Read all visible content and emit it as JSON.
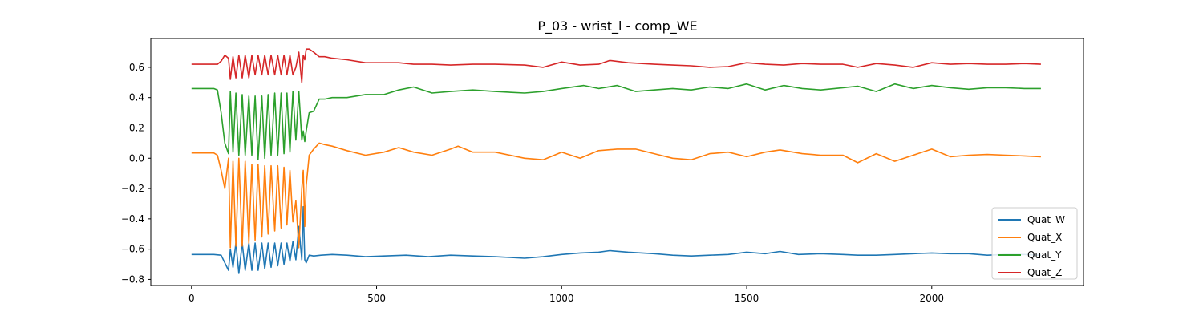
{
  "chart_data": {
    "type": "line",
    "title": "P_03 - wrist_l - comp_WE",
    "xlabel": "",
    "ylabel": "",
    "xlim": [
      -110,
      2410
    ],
    "ylim": [
      -0.84,
      0.79
    ],
    "x_ticks": [
      0,
      500,
      1000,
      1500,
      2000
    ],
    "y_ticks": [
      -0.8,
      -0.6,
      -0.4,
      -0.2,
      0.0,
      0.2,
      0.4,
      0.6
    ],
    "x_tick_labels": [
      "0",
      "500",
      "1000",
      "1500",
      "2000"
    ],
    "y_tick_labels": [
      "−0.8",
      "−0.6",
      "−0.4",
      "−0.2",
      "0.0",
      "0.2",
      "0.4",
      "0.6"
    ],
    "grid": false,
    "legend_position": "lower-right",
    "series": [
      {
        "name": "Quat_W",
        "color": "#1f77b4",
        "x": [
          0,
          60,
          80,
          90,
          100,
          105,
          112,
          120,
          128,
          137,
          145,
          155,
          163,
          172,
          180,
          190,
          198,
          207,
          215,
          225,
          233,
          242,
          250,
          258,
          266,
          274,
          282,
          290,
          298,
          302,
          306,
          310,
          318,
          330,
          350,
          380,
          420,
          470,
          520,
          580,
          640,
          700,
          760,
          820,
          860,
          900,
          950,
          1000,
          1050,
          1100,
          1130,
          1180,
          1250,
          1300,
          1350,
          1400,
          1450,
          1500,
          1550,
          1590,
          1640,
          1700,
          1760,
          1800,
          1850,
          1900,
          1950,
          2000,
          2050,
          2100,
          2150,
          2200,
          2250,
          2295
        ],
        "values": [
          -0.635,
          -0.635,
          -0.64,
          -0.69,
          -0.74,
          -0.6,
          -0.72,
          -0.56,
          -0.76,
          -0.56,
          -0.74,
          -0.56,
          -0.74,
          -0.56,
          -0.74,
          -0.56,
          -0.73,
          -0.56,
          -0.72,
          -0.56,
          -0.71,
          -0.56,
          -0.7,
          -0.56,
          -0.68,
          -0.55,
          -0.67,
          -0.45,
          -0.67,
          -0.32,
          -0.67,
          -0.69,
          -0.64,
          -0.645,
          -0.64,
          -0.635,
          -0.64,
          -0.65,
          -0.645,
          -0.64,
          -0.65,
          -0.64,
          -0.645,
          -0.65,
          -0.655,
          -0.66,
          -0.65,
          -0.635,
          -0.625,
          -0.62,
          -0.61,
          -0.62,
          -0.63,
          -0.64,
          -0.645,
          -0.64,
          -0.635,
          -0.62,
          -0.63,
          -0.615,
          -0.635,
          -0.63,
          -0.635,
          -0.64,
          -0.64,
          -0.635,
          -0.63,
          -0.625,
          -0.63,
          -0.63,
          -0.64,
          -0.635,
          -0.635,
          -0.64
        ]
      },
      {
        "name": "Quat_X",
        "color": "#ff7f0e",
        "x": [
          0,
          60,
          70,
          80,
          90,
          100,
          105,
          112,
          120,
          128,
          137,
          145,
          155,
          163,
          172,
          180,
          190,
          198,
          207,
          215,
          225,
          233,
          242,
          250,
          258,
          266,
          274,
          282,
          290,
          298,
          302,
          306,
          310,
          318,
          330,
          345,
          360,
          380,
          420,
          470,
          520,
          560,
          600,
          650,
          700,
          720,
          760,
          820,
          900,
          950,
          1000,
          1050,
          1100,
          1150,
          1200,
          1250,
          1300,
          1350,
          1400,
          1450,
          1500,
          1550,
          1590,
          1650,
          1700,
          1760,
          1800,
          1850,
          1900,
          1950,
          2000,
          2050,
          2100,
          2150,
          2200,
          2250,
          2295
        ],
        "values": [
          0.035,
          0.035,
          0.02,
          -0.08,
          -0.2,
          0.0,
          -0.59,
          -0.02,
          -0.58,
          0.0,
          -0.58,
          -0.02,
          -0.56,
          -0.04,
          -0.54,
          -0.04,
          -0.52,
          -0.05,
          -0.5,
          -0.05,
          -0.48,
          -0.05,
          -0.46,
          -0.06,
          -0.44,
          -0.08,
          -0.42,
          -0.28,
          -0.59,
          -0.2,
          -0.08,
          -0.45,
          -0.18,
          0.02,
          0.06,
          0.1,
          0.09,
          0.08,
          0.05,
          0.02,
          0.04,
          0.07,
          0.04,
          0.02,
          0.06,
          0.08,
          0.04,
          0.04,
          0.0,
          -0.01,
          0.04,
          0.0,
          0.05,
          0.06,
          0.06,
          0.03,
          0.0,
          -0.01,
          0.03,
          0.04,
          0.01,
          0.04,
          0.055,
          0.03,
          0.02,
          0.02,
          -0.03,
          0.03,
          -0.02,
          0.02,
          0.06,
          0.01,
          0.02,
          0.025,
          0.02,
          0.015,
          0.01
        ]
      },
      {
        "name": "Quat_Y",
        "color": "#2ca02c",
        "x": [
          0,
          60,
          70,
          80,
          90,
          100,
          105,
          112,
          120,
          128,
          137,
          145,
          155,
          163,
          172,
          180,
          190,
          198,
          207,
          215,
          225,
          233,
          242,
          250,
          258,
          266,
          274,
          282,
          290,
          298,
          302,
          306,
          310,
          318,
          330,
          345,
          360,
          380,
          420,
          470,
          520,
          560,
          600,
          650,
          700,
          760,
          820,
          900,
          950,
          1000,
          1060,
          1100,
          1150,
          1200,
          1250,
          1300,
          1350,
          1400,
          1450,
          1500,
          1550,
          1600,
          1650,
          1700,
          1760,
          1800,
          1850,
          1900,
          1950,
          2000,
          2050,
          2100,
          2150,
          2200,
          2250,
          2295
        ],
        "values": [
          0.46,
          0.46,
          0.45,
          0.3,
          0.1,
          0.03,
          0.44,
          0.04,
          0.43,
          0.02,
          0.42,
          0.02,
          0.41,
          0.02,
          0.41,
          -0.01,
          0.41,
          0.0,
          0.42,
          0.02,
          0.43,
          0.02,
          0.43,
          0.03,
          0.43,
          0.04,
          0.44,
          0.12,
          0.44,
          0.12,
          0.18,
          0.11,
          0.18,
          0.3,
          0.31,
          0.39,
          0.39,
          0.4,
          0.4,
          0.42,
          0.42,
          0.45,
          0.47,
          0.43,
          0.44,
          0.45,
          0.44,
          0.43,
          0.44,
          0.46,
          0.48,
          0.46,
          0.48,
          0.44,
          0.45,
          0.46,
          0.45,
          0.47,
          0.46,
          0.49,
          0.45,
          0.48,
          0.46,
          0.45,
          0.465,
          0.475,
          0.44,
          0.49,
          0.46,
          0.48,
          0.465,
          0.455,
          0.465,
          0.465,
          0.46,
          0.46
        ]
      },
      {
        "name": "Quat_Z",
        "color": "#d62728",
        "x": [
          0,
          60,
          70,
          80,
          90,
          100,
          105,
          112,
          120,
          128,
          137,
          145,
          155,
          163,
          172,
          180,
          190,
          198,
          207,
          215,
          225,
          233,
          242,
          250,
          258,
          266,
          274,
          282,
          290,
          298,
          302,
          306,
          310,
          318,
          330,
          345,
          360,
          380,
          420,
          470,
          520,
          560,
          600,
          650,
          700,
          760,
          820,
          900,
          950,
          1000,
          1050,
          1100,
          1130,
          1180,
          1250,
          1300,
          1350,
          1400,
          1450,
          1500,
          1550,
          1600,
          1650,
          1700,
          1760,
          1800,
          1850,
          1900,
          1950,
          2000,
          2050,
          2100,
          2150,
          2200,
          2250,
          2295
        ],
        "values": [
          0.62,
          0.62,
          0.62,
          0.64,
          0.68,
          0.66,
          0.52,
          0.67,
          0.53,
          0.68,
          0.53,
          0.68,
          0.53,
          0.68,
          0.55,
          0.68,
          0.55,
          0.68,
          0.55,
          0.68,
          0.55,
          0.68,
          0.55,
          0.68,
          0.55,
          0.68,
          0.55,
          0.6,
          0.7,
          0.5,
          0.68,
          0.65,
          0.72,
          0.72,
          0.7,
          0.67,
          0.67,
          0.66,
          0.65,
          0.63,
          0.63,
          0.63,
          0.62,
          0.62,
          0.615,
          0.62,
          0.62,
          0.615,
          0.6,
          0.635,
          0.615,
          0.62,
          0.645,
          0.63,
          0.62,
          0.615,
          0.61,
          0.6,
          0.605,
          0.63,
          0.62,
          0.615,
          0.625,
          0.62,
          0.62,
          0.6,
          0.625,
          0.615,
          0.6,
          0.63,
          0.62,
          0.625,
          0.62,
          0.62,
          0.625,
          0.62
        ]
      }
    ]
  }
}
